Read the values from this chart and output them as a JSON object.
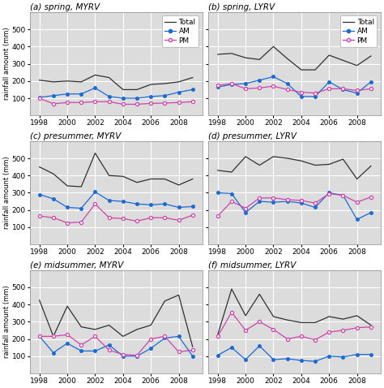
{
  "years": [
    1998,
    1999,
    2000,
    2001,
    2002,
    2003,
    2004,
    2005,
    2006,
    2007,
    2008,
    2009
  ],
  "panels": [
    {
      "label": "(a) spring, MYRV",
      "total": [
        205,
        195,
        200,
        195,
        235,
        220,
        150,
        150,
        180,
        185,
        195,
        220
      ],
      "am": [
        105,
        115,
        125,
        125,
        160,
        110,
        100,
        100,
        110,
        115,
        135,
        150
      ],
      "pm": [
        100,
        68,
        75,
        75,
        80,
        80,
        65,
        65,
        70,
        72,
        75,
        80
      ]
    },
    {
      "label": "(b) spring, LYRV",
      "total": [
        355,
        360,
        335,
        325,
        400,
        330,
        265,
        265,
        350,
        320,
        290,
        345
      ],
      "am": [
        165,
        180,
        185,
        205,
        225,
        185,
        110,
        110,
        195,
        150,
        130,
        195
      ],
      "pm": [
        175,
        185,
        155,
        160,
        170,
        150,
        135,
        130,
        155,
        155,
        145,
        155
      ]
    },
    {
      "label": "(c) presummer, MYRV",
      "total": [
        450,
        410,
        340,
        335,
        530,
        400,
        395,
        360,
        380,
        380,
        345,
        380
      ],
      "am": [
        290,
        265,
        215,
        210,
        305,
        255,
        250,
        235,
        230,
        235,
        215,
        220
      ],
      "pm": [
        165,
        155,
        125,
        130,
        235,
        155,
        150,
        135,
        155,
        155,
        140,
        170
      ]
    },
    {
      "label": "(d) presummer, LYRV",
      "total": [
        430,
        420,
        510,
        460,
        510,
        500,
        485,
        460,
        465,
        495,
        380,
        455
      ],
      "am": [
        300,
        295,
        185,
        250,
        245,
        250,
        240,
        215,
        300,
        285,
        145,
        185
      ],
      "pm": [
        165,
        250,
        210,
        270,
        270,
        260,
        255,
        240,
        295,
        285,
        245,
        275
      ]
    },
    {
      "label": "(e) midsummer, MYRV",
      "total": [
        425,
        215,
        390,
        270,
        255,
        280,
        215,
        255,
        280,
        420,
        455,
        155
      ],
      "am": [
        215,
        120,
        175,
        130,
        130,
        165,
        100,
        100,
        145,
        205,
        215,
        100
      ],
      "pm": [
        215,
        215,
        225,
        165,
        215,
        135,
        110,
        105,
        200,
        215,
        125,
        135
      ]
    },
    {
      "label": "(f) midsummer, LYRV",
      "total": [
        225,
        490,
        335,
        460,
        330,
        310,
        295,
        295,
        330,
        315,
        335,
        280
      ],
      "am": [
        105,
        150,
        80,
        160,
        80,
        85,
        75,
        70,
        100,
        95,
        110,
        110
      ],
      "pm": [
        215,
        355,
        250,
        300,
        255,
        200,
        215,
        195,
        240,
        250,
        265,
        270
      ]
    }
  ],
  "total_color": "#303030",
  "am_color": "#1a6ad4",
  "pm_color": "#cc44aa",
  "bg_color": "#dcdcdc",
  "grid_color": "#ffffff",
  "ylabel": "rainfall amount (mm)",
  "yticks": [
    100,
    200,
    300,
    400,
    500
  ],
  "xticks": [
    1998,
    2000,
    2002,
    2004,
    2006,
    2008
  ]
}
